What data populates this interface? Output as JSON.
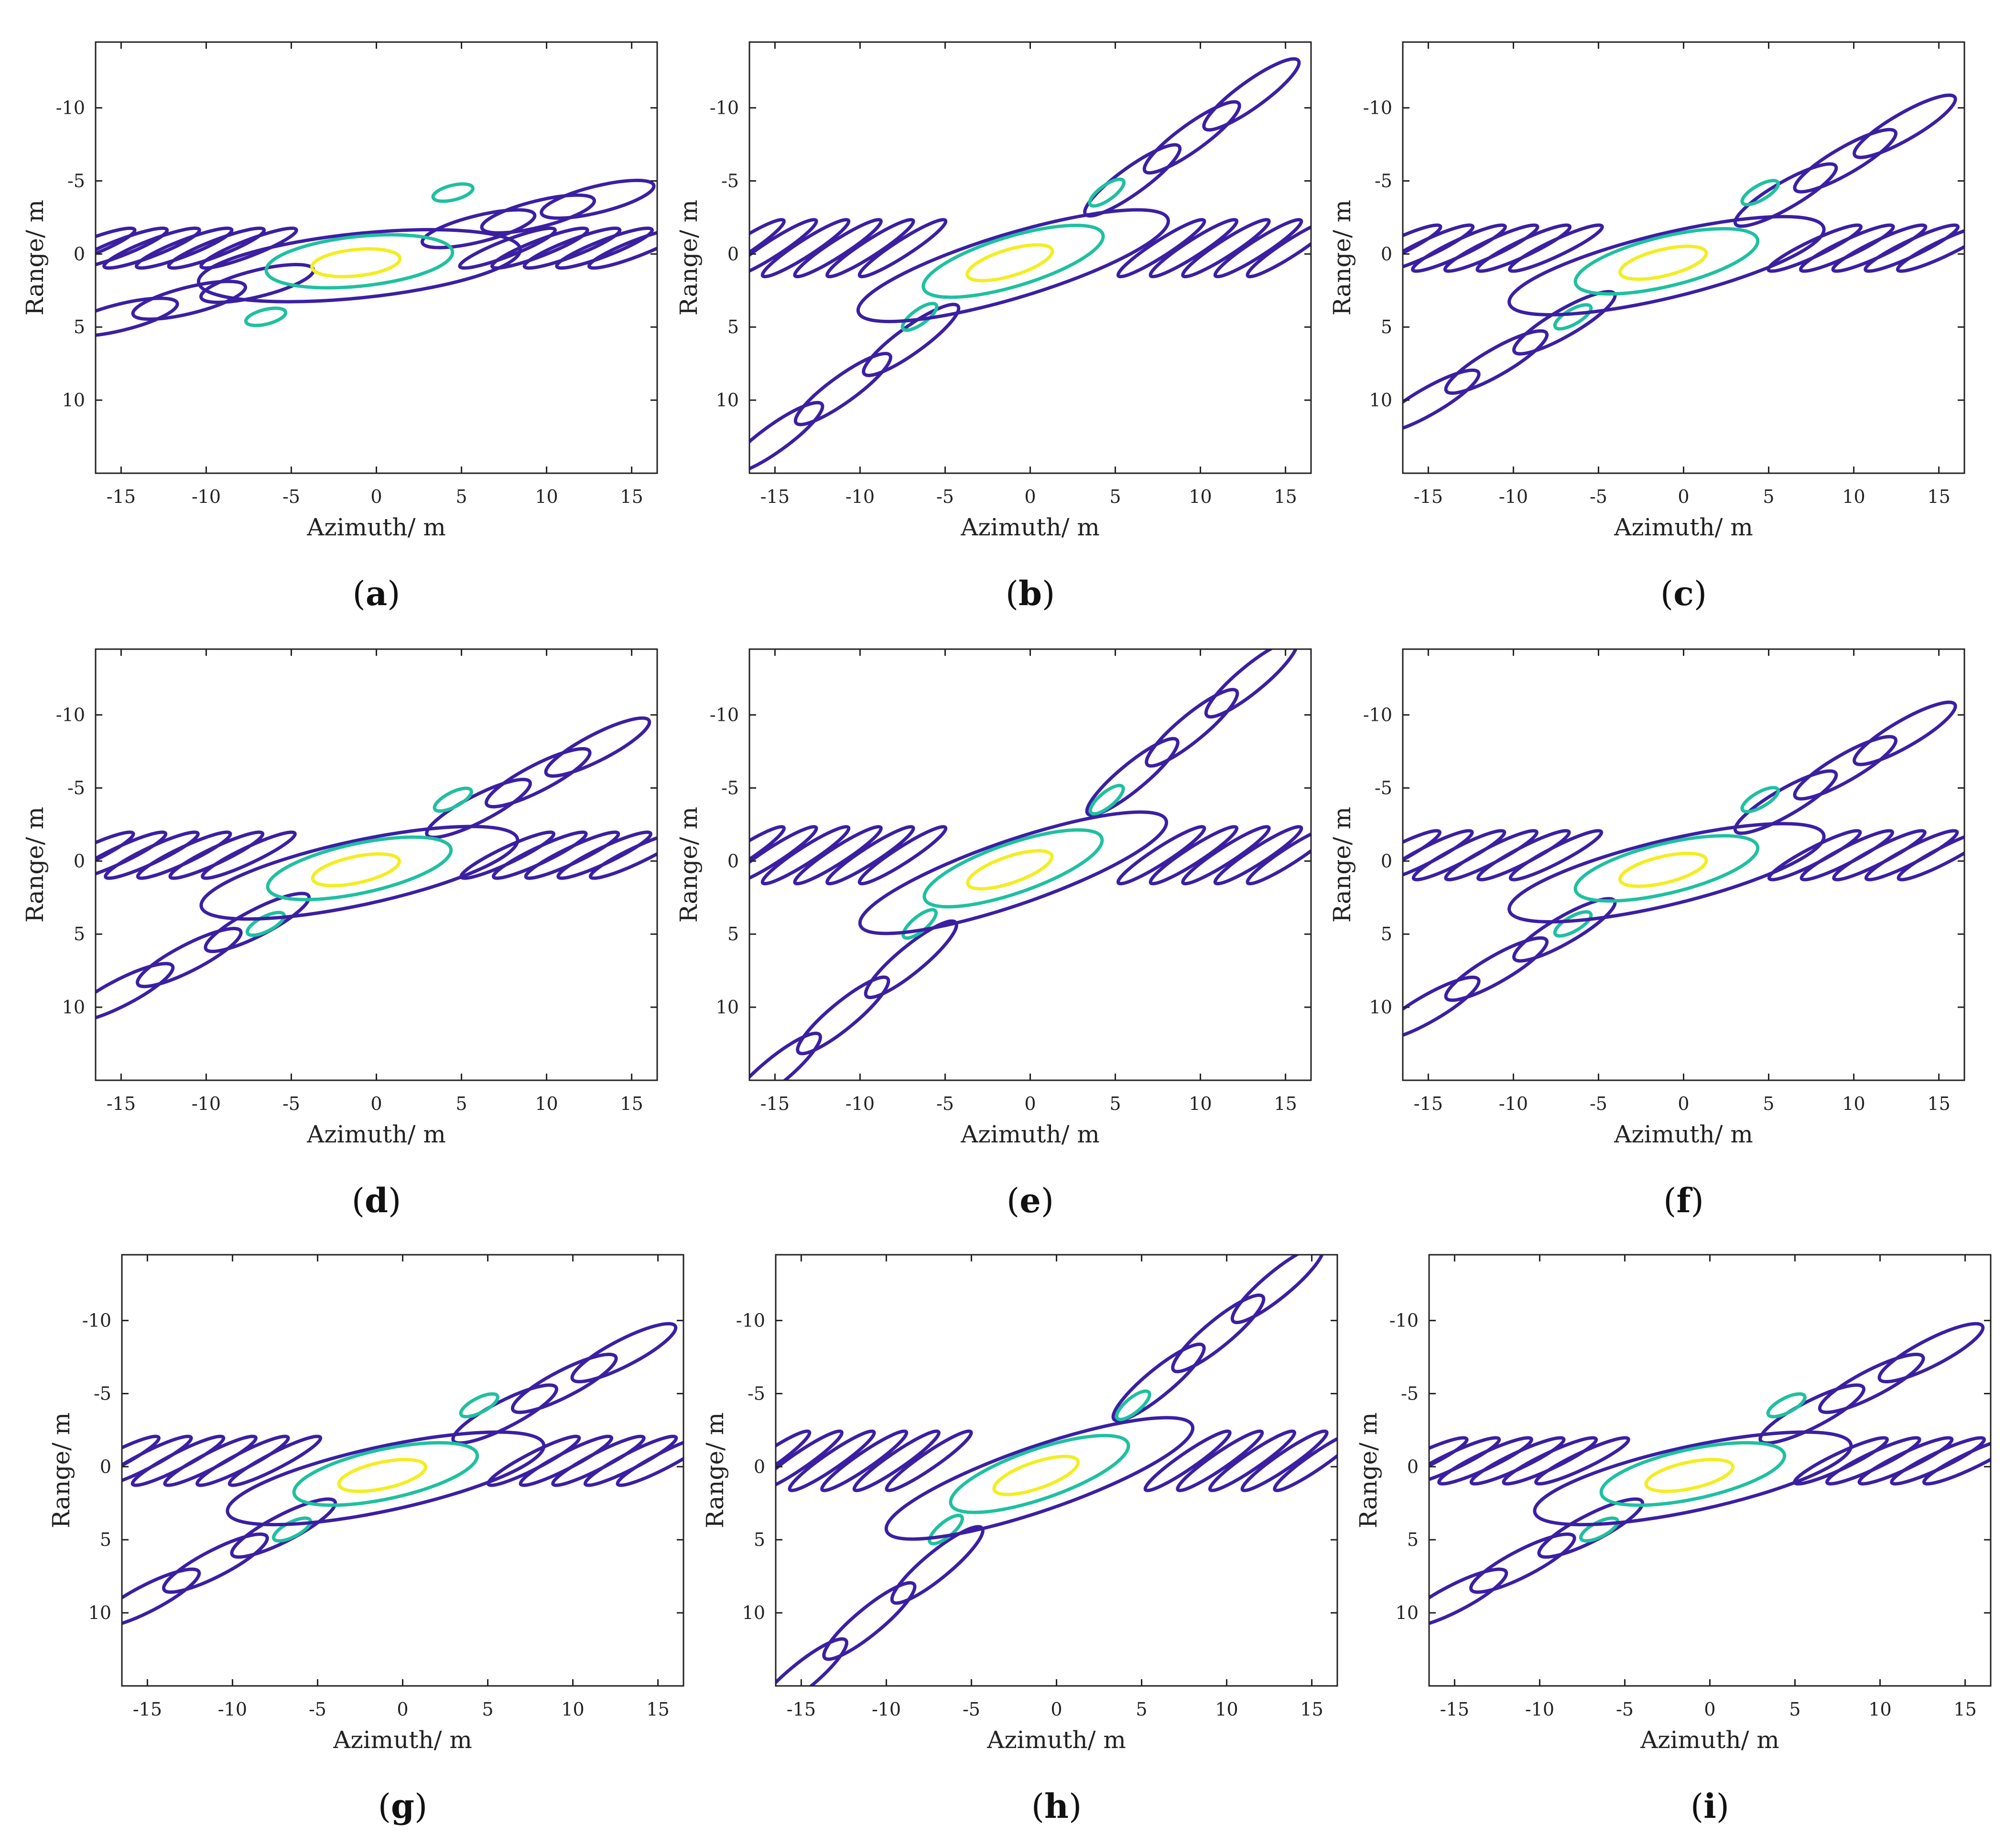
{
  "chart_data": [
    {
      "type": "contour",
      "label": "a",
      "xlabel": "Azimuth/ m",
      "ylabel": "Range/ m",
      "xlim": [
        -16.5,
        16.5
      ],
      "ylim": [
        -14.5,
        15
      ],
      "xticks": [
        "-15",
        "-10",
        "-5",
        "0",
        "5",
        "10",
        "15"
      ],
      "yticks": [
        "-10",
        "-5",
        "0",
        "5",
        "10"
      ],
      "slope_mainlobe": -0.12,
      "slope_sidelobe": -0.45,
      "diag_levels": [
        "5",
        "-5"
      ]
    },
    {
      "type": "contour",
      "label": "b",
      "xlabel": "Azimuth/ m",
      "ylabel": "Range/ m",
      "xlim": [
        -16.5,
        16.5
      ],
      "ylim": [
        -14.5,
        15
      ],
      "xticks": [
        "-15",
        "-10",
        "-5",
        "0",
        "5",
        "10",
        "15"
      ],
      "yticks": [
        "-10",
        "-5",
        "0",
        "5",
        "10"
      ],
      "slope_mainlobe": -0.35,
      "slope_sidelobe": -0.75,
      "diag_levels": [
        "5",
        "-5"
      ]
    },
    {
      "type": "contour",
      "label": "c",
      "xlabel": "Azimuth/ m",
      "ylabel": "Range/ m",
      "xlim": [
        -16.5,
        16.5
      ],
      "ylim": [
        -14.5,
        15
      ],
      "xticks": [
        "-15",
        "-10",
        "-5",
        "0",
        "5",
        "10",
        "15"
      ],
      "yticks": [
        "-10",
        "-5",
        "0",
        "5",
        "10"
      ],
      "slope_mainlobe": -0.28,
      "slope_sidelobe": -0.55,
      "diag_levels": [
        "5",
        "-5"
      ]
    },
    {
      "type": "contour",
      "label": "d",
      "xlabel": "Azimuth/ m",
      "ylabel": "Range/ m",
      "xlim": [
        -16.5,
        16.5
      ],
      "ylim": [
        -14.5,
        15
      ],
      "xticks": [
        "-15",
        "-10",
        "-5",
        "0",
        "5",
        "10",
        "15"
      ],
      "yticks": [
        "-10",
        "-5",
        "0",
        "5",
        "10"
      ],
      "slope_mainlobe": -0.25,
      "slope_sidelobe": -0.55,
      "diag_levels": [
        "5",
        "-5"
      ]
    },
    {
      "type": "contour",
      "label": "e",
      "xlabel": "Azimuth/ m",
      "ylabel": "Range/ m",
      "xlim": [
        -16.5,
        16.5
      ],
      "ylim": [
        -14.5,
        15
      ],
      "xticks": [
        "-15",
        "-10",
        "-5",
        "0",
        "5",
        "10",
        "15"
      ],
      "yticks": [
        "-10",
        "-5",
        "0",
        "5",
        "10"
      ],
      "slope_mainlobe": -0.4,
      "slope_sidelobe": -0.75,
      "diag_levels": [
        "5",
        "-5"
      ]
    },
    {
      "type": "contour",
      "label": "f",
      "xlabel": "Azimuth/ m",
      "ylabel": "Range/ m",
      "xlim": [
        -16.5,
        16.5
      ],
      "ylim": [
        -14.5,
        15
      ],
      "xticks": [
        "-15",
        "-10",
        "-5",
        "0",
        "5",
        "10",
        "15"
      ],
      "yticks": [
        "-10",
        "-5",
        "0",
        "5",
        "10"
      ],
      "slope_mainlobe": -0.28,
      "slope_sidelobe": -0.6,
      "diag_levels": [
        "5",
        "-5"
      ]
    },
    {
      "type": "contour",
      "label": "g",
      "xlabel": "Azimuth/ m",
      "ylabel": "Range/ m",
      "xlim": [
        -16.5,
        16.5
      ],
      "ylim": [
        -14.5,
        15
      ],
      "xticks": [
        "-15",
        "-10",
        "-5",
        "0",
        "5",
        "10",
        "15"
      ],
      "yticks": [
        "-10",
        "-5",
        "0",
        "5",
        "10"
      ],
      "slope_mainlobe": -0.25,
      "slope_sidelobe": -0.6,
      "diag_levels": [
        "5",
        "-5"
      ]
    },
    {
      "type": "contour",
      "label": "h",
      "xlabel": "Azimuth/ m",
      "ylabel": "Range/ m",
      "xlim": [
        -16.5,
        16.5
      ],
      "ylim": [
        -14.5,
        15
      ],
      "xticks": [
        "-15",
        "-10",
        "-5",
        "0",
        "5",
        "10",
        "15"
      ],
      "yticks": [
        "-10",
        "-5",
        "0",
        "5",
        "10"
      ],
      "slope_mainlobe": -0.4,
      "slope_sidelobe": -0.8,
      "diag_levels": [
        "5",
        "-5"
      ]
    },
    {
      "type": "contour",
      "label": "i",
      "xlabel": "Azimuth/ m",
      "ylabel": "Range/ m",
      "xlim": [
        -16.5,
        16.5
      ],
      "ylim": [
        -14.5,
        15
      ],
      "xticks": [
        "-15",
        "-10",
        "-5",
        "0",
        "5",
        "10",
        "15"
      ],
      "yticks": [
        "-10",
        "-5",
        "0",
        "5",
        "10"
      ],
      "slope_mainlobe": -0.25,
      "slope_sidelobe": -0.55,
      "diag_levels": [
        "5",
        "-5"
      ]
    }
  ],
  "colors": {
    "outer": "#3b1fa3",
    "mid": "#1fc0a0",
    "inner": "#f2ee22",
    "axis": "#222222"
  }
}
